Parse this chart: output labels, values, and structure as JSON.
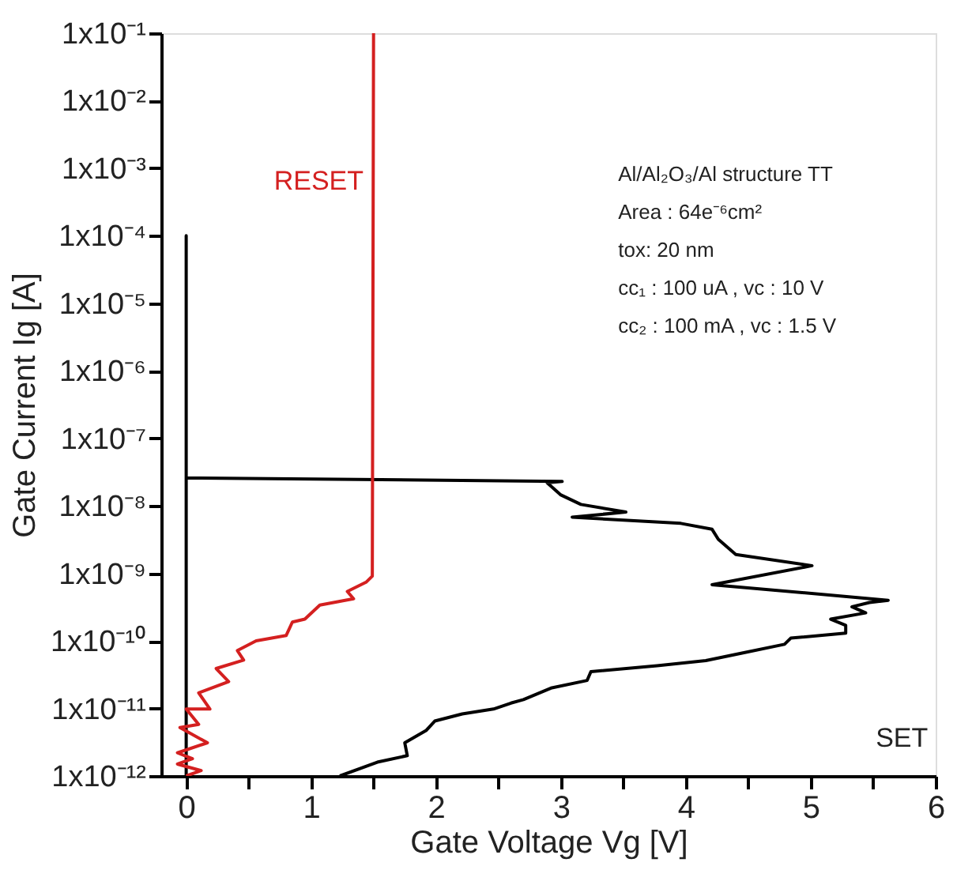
{
  "chart_data": {
    "type": "line",
    "xlabel": "Gate Voltage Vg [V]",
    "ylabel": "Gate Current Ig [A]",
    "log": "y",
    "grid": false,
    "line_style": "solid",
    "marker": "none",
    "xlim": [
      -0.2,
      6
    ],
    "ylim": [
      1e-12,
      0.1
    ],
    "xticks": [
      0,
      {
        "value": 0.5,
        "label": null
      },
      1,
      {
        "value": 1.5,
        "label": null
      },
      2,
      {
        "value": 2.5,
        "label": null
      },
      3,
      {
        "value": 3.5,
        "label": null
      },
      4,
      {
        "value": 4.5,
        "label": null
      },
      5,
      {
        "value": 5.5,
        "label": null
      },
      6
    ],
    "yticks": [
      {
        "value": 1e-12,
        "label": "1x10⁻¹²"
      },
      {
        "value": 1e-11,
        "label": "1x10⁻¹¹"
      },
      {
        "value": 1e-10,
        "label": "1x10⁻¹⁰"
      },
      {
        "value": 1e-09,
        "label": "1x10⁻⁹"
      },
      {
        "value": 1e-08,
        "label": "1x10⁻⁸"
      },
      {
        "value": 1e-07,
        "label": "1x10⁻⁷"
      },
      {
        "value": 1e-06,
        "label": "1x10⁻⁶"
      },
      {
        "value": 1e-05,
        "label": "1x10⁻⁵"
      },
      {
        "value": 0.0001,
        "label": "1x10⁻⁴"
      },
      {
        "value": 0.001,
        "label": "1x10⁻³"
      },
      {
        "value": 0.01,
        "label": "1x10⁻²"
      },
      {
        "value": 0.1,
        "label": "1x10⁻¹"
      }
    ],
    "series": [
      {
        "color": "#000000",
        "x": [
          1.23,
          1.53,
          1.77,
          1.75,
          1.92,
          1.99,
          2.21,
          2.46,
          2.6,
          2.7,
          2.92,
          3.21,
          3.24,
          3.77,
          4.16,
          4.45,
          4.79,
          4.84,
          5.28,
          5.28,
          5.16,
          5.44,
          5.33,
          5.47,
          5.62,
          4.21,
          5.01,
          4.4,
          4.26,
          4.21,
          3.96,
          3.09,
          3.52,
          3.16,
          3.0,
          2.89,
          3.01,
          0,
          0,
          0
        ],
        "values": [
          1e-12,
          1.6e-12,
          2e-12,
          3.1e-12,
          4.7e-12,
          6.5e-12,
          8.3e-12,
          9.8e-12,
          1.2e-11,
          1.35e-11,
          2e-11,
          2.6e-11,
          3.5e-11,
          4.3e-11,
          5.1e-11,
          6.6e-11,
          8.9e-11,
          1.1e-10,
          1.3e-10,
          1.7e-10,
          2.1e-10,
          2.6e-10,
          3.2e-10,
          3.7e-10,
          4e-10,
          6.8e-10,
          1.3e-09,
          1.9e-09,
          3.2e-09,
          4.5e-09,
          5.5e-09,
          6.8e-09,
          8.1e-09,
          1.05e-08,
          1.45e-08,
          2.2e-08,
          2.3e-08,
          2.6e-08,
          0.0001,
          1e-12
        ]
      },
      {
        "color": "#d42020",
        "x": [
          1.5,
          1.49,
          1.44,
          1.29,
          1.34,
          1.07,
          0.95,
          0.85,
          0.8,
          0.56,
          0.41,
          0.46,
          0.24,
          0.34,
          0.1,
          0.19,
          0,
          0.1,
          -0.05,
          0.17,
          -0.07,
          0.05,
          -0.07,
          0.12,
          0
        ],
        "values": [
          0.1,
          9.1e-10,
          7.4e-10,
          5.4e-10,
          4.2e-10,
          3.4e-10,
          2.1e-10,
          1.9e-10,
          1.2e-10,
          1e-10,
          7.2e-11,
          5.2e-11,
          3.9e-11,
          2.5e-11,
          1.7e-11,
          9.8e-12,
          9.8e-12,
          5.8e-12,
          5.2e-12,
          3.1e-12,
          2.2e-12,
          1.8e-12,
          1.5e-12,
          1.2e-12,
          1e-12
        ]
      }
    ],
    "annotations": [
      "RESET",
      "SET",
      "Al/Al₂O₃/Al structure TT",
      "Area : 64e⁻⁶cm²",
      "tox: 20 nm",
      "cc₁ : 100 uA , vc : 10 V",
      "cc₂ : 100 mA , vc : 1.5 V"
    ]
  }
}
